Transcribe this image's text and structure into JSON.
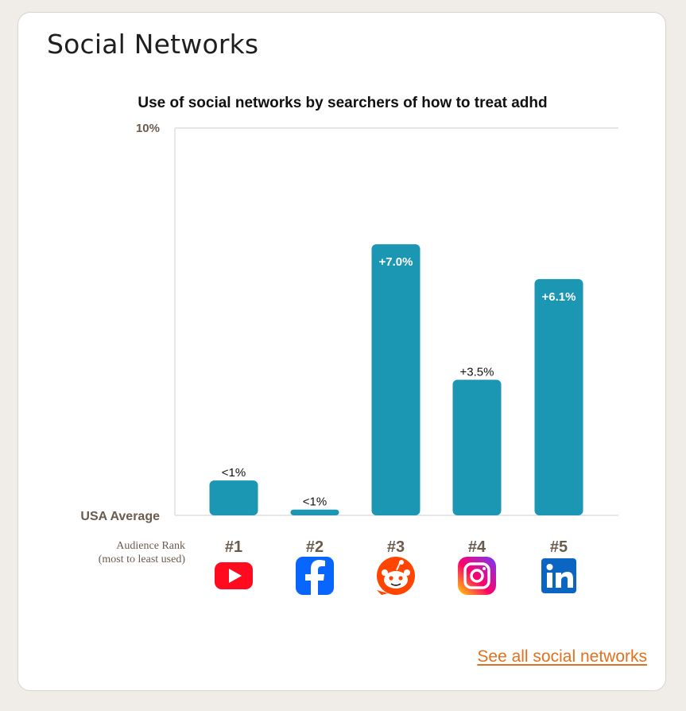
{
  "card": {
    "title": "Social Networks",
    "see_all_label": "See all social networks"
  },
  "chart_data": {
    "type": "bar",
    "title": "Use of social networks by searchers of how to treat adhd",
    "xlabel": "Audience Rank",
    "xlabel_sub": "(most to least used)",
    "y_top_label": "10%",
    "y_baseline_label": "USA Average",
    "ylim": [
      0,
      10
    ],
    "grid": true,
    "categories": [
      "#1",
      "#2",
      "#3",
      "#4",
      "#5"
    ],
    "networks": [
      "youtube",
      "facebook",
      "reddit",
      "instagram",
      "linkedin"
    ],
    "values": [
      0.9,
      0.15,
      7.0,
      3.5,
      6.1
    ],
    "data_labels": [
      "<1%",
      "<1%",
      "+7.0%",
      "+3.5%",
      "+6.1%"
    ],
    "label_inside": [
      false,
      false,
      true,
      false,
      true
    ]
  },
  "colors": {
    "bar": "#1b96b3",
    "axis_label": "#6b5b4d",
    "link": "#e0711f"
  }
}
